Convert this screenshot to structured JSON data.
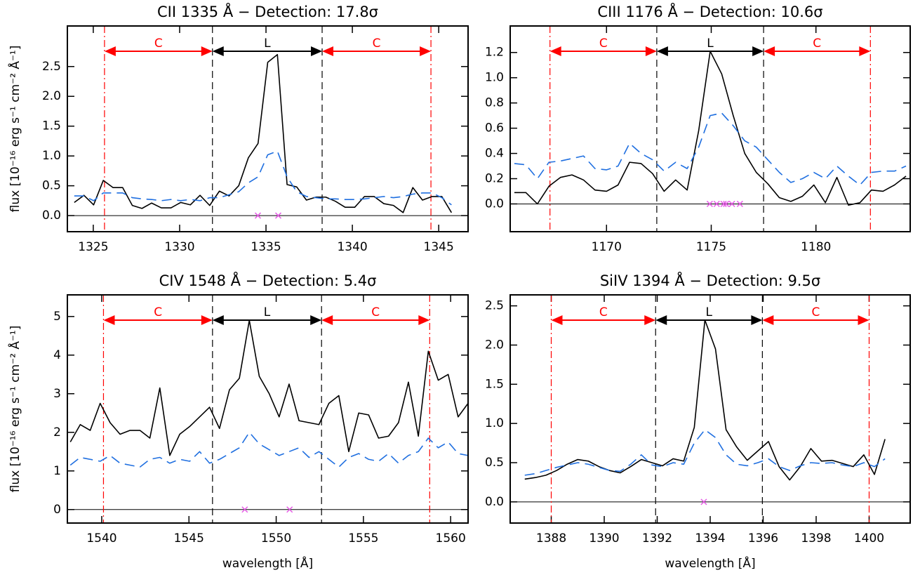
{
  "chart_data": [
    {
      "type": "line",
      "title": "CII 1335 Å − Detection: 17.8σ",
      "ylabel": "flux [10⁻¹⁶ erg s⁻¹ cm⁻² Å⁻¹]",
      "xlim": [
        1323.5,
        1346.7
      ],
      "ylim": [
        -0.27,
        3.18
      ],
      "xticks": [
        1325,
        1330,
        1335,
        1340,
        1345
      ],
      "yticks": [
        {
          "value": 0,
          "label": "0.0"
        },
        0.5,
        {
          "value": 1,
          "label": "1.0"
        },
        1.5,
        {
          "value": 2,
          "label": "2.0"
        },
        2.5
      ],
      "baseline": 0,
      "x": [
        1323.9,
        1324.46,
        1325.02,
        1325.58,
        1326.14,
        1326.7,
        1327.26,
        1327.82,
        1328.38,
        1328.94,
        1329.5,
        1330.06,
        1330.62,
        1331.18,
        1331.74,
        1332.3,
        1332.86,
        1333.42,
        1333.98,
        1334.54,
        1335.1,
        1335.66,
        1336.22,
        1336.78,
        1337.34,
        1337.9,
        1338.46,
        1339.02,
        1339.58,
        1340.14,
        1340.7,
        1341.26,
        1341.82,
        1342.38,
        1342.94,
        1343.5,
        1344.06,
        1344.62,
        1345.18,
        1345.74
      ],
      "series": [
        {
          "color": "#000000",
          "style": "solid",
          "values": [
            0.22,
            0.34,
            0.18,
            0.59,
            0.47,
            0.47,
            0.17,
            0.12,
            0.21,
            0.13,
            0.13,
            0.22,
            0.18,
            0.34,
            0.17,
            0.41,
            0.33,
            0.5,
            0.97,
            1.21,
            2.57,
            2.7,
            0.52,
            0.48,
            0.26,
            0.31,
            0.31,
            0.24,
            0.14,
            0.14,
            0.32,
            0.32,
            0.2,
            0.17,
            0.05,
            0.47,
            0.26,
            0.32,
            0.32,
            0.05
          ]
        },
        {
          "color": "#1f6fe0",
          "style": "dashed",
          "values": [
            0.33,
            0.33,
            0.25,
            0.38,
            0.38,
            0.38,
            0.3,
            0.28,
            0.27,
            0.25,
            0.27,
            0.25,
            0.27,
            0.25,
            0.3,
            0.3,
            0.35,
            0.4,
            0.55,
            0.65,
            1.02,
            1.08,
            0.65,
            0.4,
            0.32,
            0.3,
            0.28,
            0.28,
            0.27,
            0.27,
            0.28,
            0.3,
            0.32,
            0.3,
            0.32,
            0.36,
            0.38,
            0.38,
            0.3,
            0.18
          ]
        }
      ],
      "markers": {
        "color": "#e65ce6",
        "x": [
          1334.53,
          1335.71
        ],
        "values": [
          0,
          0
        ]
      },
      "regions": [
        {
          "label": "C",
          "color": "#ff0000",
          "start": 1325.65,
          "end": 1331.9
        },
        {
          "label": "L",
          "color": "#000000",
          "start": 1331.9,
          "end": 1338.25
        },
        {
          "label": "C",
          "color": "#ff0000",
          "start": 1338.25,
          "end": 1344.55
        }
      ]
    },
    {
      "type": "line",
      "title": "CIII 1176 Å − Detection: 10.6σ",
      "xlim": [
        1165.4,
        1184.5
      ],
      "ylim": [
        -0.22,
        1.41
      ],
      "xticks": [
        1170,
        1175,
        1180
      ],
      "yticks": [
        {
          "value": 0,
          "label": "0.0"
        },
        0.2,
        0.4,
        0.6,
        0.8,
        {
          "value": 1,
          "label": "1.0"
        },
        1.2
      ],
      "baseline": 0,
      "x": [
        1165.6,
        1166.15,
        1166.7,
        1167.25,
        1167.8,
        1168.35,
        1168.9,
        1169.45,
        1170,
        1170.55,
        1171.1,
        1171.65,
        1172.2,
        1172.75,
        1173.3,
        1173.85,
        1174.4,
        1174.95,
        1175.5,
        1176.05,
        1176.6,
        1177.15,
        1177.7,
        1178.25,
        1178.8,
        1179.35,
        1179.9,
        1180.45,
        1181,
        1181.55,
        1182.1,
        1182.65,
        1183.2,
        1183.75,
        1184.3
      ],
      "series": [
        {
          "color": "#000000",
          "style": "solid",
          "values": [
            0.09,
            0.09,
            0.0,
            0.14,
            0.21,
            0.23,
            0.19,
            0.11,
            0.1,
            0.15,
            0.33,
            0.32,
            0.24,
            0.1,
            0.19,
            0.11,
            0.58,
            1.21,
            1.03,
            0.7,
            0.4,
            0.25,
            0.16,
            0.05,
            0.02,
            0.06,
            0.15,
            0.01,
            0.21,
            -0.01,
            0.01,
            0.11,
            0.1,
            0.15,
            0.22
          ]
        },
        {
          "color": "#1f6fe0",
          "style": "dashed",
          "values": [
            0.32,
            0.31,
            0.2,
            0.33,
            0.34,
            0.36,
            0.38,
            0.28,
            0.27,
            0.3,
            0.48,
            0.4,
            0.35,
            0.26,
            0.33,
            0.28,
            0.45,
            0.7,
            0.72,
            0.62,
            0.5,
            0.45,
            0.35,
            0.25,
            0.17,
            0.2,
            0.25,
            0.2,
            0.3,
            0.22,
            0.15,
            0.25,
            0.26,
            0.26,
            0.3
          ]
        }
      ],
      "markers": {
        "color": "#e65ce6",
        "x": [
          1174.93,
          1175.26,
          1175.59,
          1175.71,
          1175.99,
          1176.37
        ],
        "values": [
          0,
          0,
          0,
          0,
          0,
          0
        ]
      },
      "regions": [
        {
          "label": "C",
          "color": "#ff0000",
          "start": 1167.3,
          "end": 1172.4
        },
        {
          "label": "L",
          "color": "#000000",
          "start": 1172.4,
          "end": 1177.5
        },
        {
          "label": "C",
          "color": "#ff0000",
          "start": 1177.5,
          "end": 1182.6
        }
      ]
    },
    {
      "type": "line",
      "title": "CIV 1548 Å − Detection:  5.4σ",
      "ylabel": "flux [10⁻¹⁶ erg s⁻¹ cm⁻² Å⁻¹]",
      "xlabel": "wavelength [Å]",
      "xlim": [
        1538.03,
        1561.0
      ],
      "ylim": [
        -0.35,
        5.56
      ],
      "xticks": [
        1540,
        1545,
        1550,
        1555,
        1560
      ],
      "yticks": [
        0,
        1,
        2,
        3,
        4,
        5
      ],
      "baseline": 0,
      "x": [
        1538.2,
        1538.77,
        1539.34,
        1539.91,
        1540.48,
        1541.05,
        1541.62,
        1542.19,
        1542.76,
        1543.33,
        1543.9,
        1544.47,
        1545.04,
        1545.61,
        1546.18,
        1546.75,
        1547.32,
        1547.89,
        1548.46,
        1549.03,
        1549.6,
        1550.17,
        1550.74,
        1551.31,
        1551.88,
        1552.45,
        1553.02,
        1553.59,
        1554.16,
        1554.73,
        1555.3,
        1555.87,
        1556.44,
        1557.01,
        1557.58,
        1558.15,
        1558.72,
        1559.29,
        1559.86,
        1560.43,
        1561.0
      ],
      "series": [
        {
          "color": "#000000",
          "style": "solid",
          "values": [
            1.75,
            2.2,
            2.05,
            2.75,
            2.25,
            1.95,
            2.05,
            2.05,
            1.85,
            3.15,
            1.4,
            1.95,
            2.15,
            2.4,
            2.65,
            2.1,
            3.1,
            3.4,
            4.9,
            3.45,
            3.0,
            2.4,
            3.25,
            2.3,
            2.25,
            2.2,
            2.75,
            2.95,
            1.5,
            2.5,
            2.45,
            1.85,
            1.9,
            2.25,
            3.3,
            1.9,
            4.1,
            3.35,
            3.5,
            2.4,
            2.75
          ]
        },
        {
          "color": "#1f6fe0",
          "style": "dashed",
          "values": [
            1.15,
            1.35,
            1.3,
            1.25,
            1.4,
            1.2,
            1.15,
            1.1,
            1.3,
            1.35,
            1.2,
            1.3,
            1.25,
            1.5,
            1.2,
            1.3,
            1.45,
            1.6,
            2.0,
            1.7,
            1.55,
            1.4,
            1.5,
            1.6,
            1.35,
            1.5,
            1.3,
            1.1,
            1.35,
            1.45,
            1.3,
            1.25,
            1.45,
            1.2,
            1.4,
            1.5,
            1.85,
            1.6,
            1.75,
            1.45,
            1.4
          ]
        }
      ],
      "markers": {
        "color": "#e65ce6",
        "x": [
          1548.2,
          1550.77
        ],
        "values": [
          0,
          0
        ]
      },
      "regions": [
        {
          "label": "C",
          "color": "#ff0000",
          "start": 1540.1,
          "end": 1546.35
        },
        {
          "label": "L",
          "color": "#000000",
          "start": 1546.35,
          "end": 1552.6
        },
        {
          "label": "C",
          "color": "#ff0000",
          "start": 1552.6,
          "end": 1558.8
        }
      ]
    },
    {
      "type": "line",
      "title": "SiIV 1394 Å − Detection:  9.5σ",
      "xlabel": "wavelength [Å]",
      "xlim": [
        1386.45,
        1401.55
      ],
      "ylim": [
        -0.27,
        2.64
      ],
      "xticks": [
        1388,
        1390,
        1392,
        1394,
        1396,
        1398,
        1400
      ],
      "yticks": [
        {
          "value": 0,
          "label": "0.0"
        },
        0.5,
        {
          "value": 1,
          "label": "1.0"
        },
        1.5,
        {
          "value": 2,
          "label": "2.0"
        },
        2.5
      ],
      "baseline": 0,
      "x": [
        1387,
        1387.4,
        1387.8,
        1388.2,
        1388.6,
        1389,
        1389.4,
        1389.8,
        1390.2,
        1390.6,
        1391,
        1391.4,
        1391.8,
        1392.2,
        1392.6,
        1393,
        1393.4,
        1393.8,
        1394.2,
        1394.6,
        1395,
        1395.4,
        1395.8,
        1396.2,
        1396.6,
        1397,
        1397.4,
        1397.8,
        1398.2,
        1398.6,
        1399,
        1399.4,
        1399.8,
        1400.2,
        1400.6
      ],
      "series": [
        {
          "color": "#000000",
          "style": "solid",
          "values": [
            0.29,
            0.31,
            0.34,
            0.4,
            0.48,
            0.54,
            0.52,
            0.45,
            0.4,
            0.37,
            0.45,
            0.54,
            0.5,
            0.46,
            0.55,
            0.52,
            0.95,
            2.32,
            1.95,
            0.92,
            0.7,
            0.53,
            0.65,
            0.77,
            0.45,
            0.28,
            0.45,
            0.68,
            0.52,
            0.53,
            0.49,
            0.45,
            0.6,
            0.35,
            0.8
          ]
        },
        {
          "color": "#1f6fe0",
          "style": "dashed",
          "values": [
            0.34,
            0.36,
            0.4,
            0.44,
            0.47,
            0.5,
            0.48,
            0.44,
            0.4,
            0.39,
            0.48,
            0.6,
            0.47,
            0.45,
            0.5,
            0.48,
            0.75,
            0.92,
            0.82,
            0.6,
            0.48,
            0.46,
            0.5,
            0.55,
            0.45,
            0.4,
            0.46,
            0.5,
            0.49,
            0.5,
            0.47,
            0.45,
            0.5,
            0.45,
            0.55
          ]
        }
      ],
      "markers": {
        "color": "#e65ce6",
        "x": [
          1393.76
        ],
        "values": [
          0
        ]
      },
      "regions": [
        {
          "label": "C",
          "color": "#ff0000",
          "start": 1388.0,
          "end": 1391.94
        },
        {
          "label": "L",
          "color": "#000000",
          "start": 1391.94,
          "end": 1395.97
        },
        {
          "label": "C",
          "color": "#ff0000",
          "start": 1395.97,
          "end": 1400.0
        }
      ]
    }
  ]
}
